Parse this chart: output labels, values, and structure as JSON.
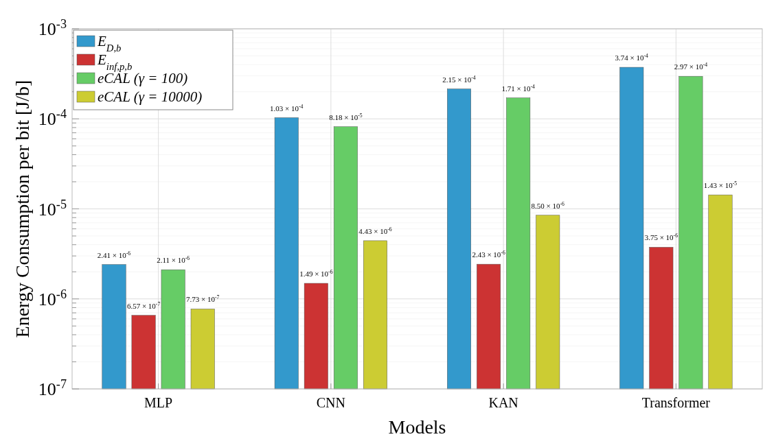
{
  "chart_data": {
    "type": "bar",
    "xlabel": "Models",
    "ylabel": "Energy Consumption per bit [J/b]",
    "categories": [
      "MLP",
      "CNN",
      "KAN",
      "Transformer"
    ],
    "series": [
      {
        "name": "E$_{D,b}$",
        "color": "#3399cc",
        "values": [
          2.41e-06,
          0.000103,
          0.000215,
          0.000374
        ],
        "value_labels": [
          "2.41 × 10$^{-6}$",
          "1.03 × 10$^{-4}$",
          "2.15 × 10$^{-4}$",
          "3.74 × 10$^{-4}$"
        ]
      },
      {
        "name": "E$_{inf,p,b}$",
        "color": "#cc3333",
        "values": [
          6.57e-07,
          1.49e-06,
          2.43e-06,
          3.75e-06
        ],
        "value_labels": [
          "6.57 × 10$^{-7}$",
          "1.49 × 10$^{-6}$",
          "2.43 × 10$^{-6}$",
          "3.75 × 10$^{-6}$"
        ]
      },
      {
        "name": "eCAL (γ = 100)",
        "color": "#66cc66",
        "values": [
          2.11e-06,
          8.18e-05,
          0.000171,
          0.000297
        ],
        "value_labels": [
          "2.11 × 10$^{-6}$",
          "8.18 × 10$^{-5}$",
          "1.71 × 10$^{-4}$",
          "2.97 × 10$^{-4}$"
        ]
      },
      {
        "name": "eCAL (γ = 10000)",
        "color": "#cccc33",
        "values": [
          7.73e-07,
          4.43e-06,
          8.5e-06,
          1.43e-05
        ],
        "value_labels": [
          "7.73 × 10$^{-7}$",
          "4.43 × 10$^{-6}$",
          "8.50 × 10$^{-6}$",
          "1.43 × 10$^{-5}$"
        ]
      }
    ],
    "log": true,
    "ylim": [
      1e-07,
      0.001
    ],
    "yticks": [
      {
        "value": 1e-07,
        "label": "10$^{-7}$"
      },
      {
        "value": 1e-06,
        "label": "10$^{-6}$"
      },
      {
        "value": 1e-05,
        "label": "10$^{-5}$"
      },
      {
        "value": 0.0001,
        "label": "10$^{-4}$"
      },
      {
        "value": 0.001,
        "label": "10$^{-3}$"
      }
    ],
    "grid": true,
    "legend": "top left"
  }
}
